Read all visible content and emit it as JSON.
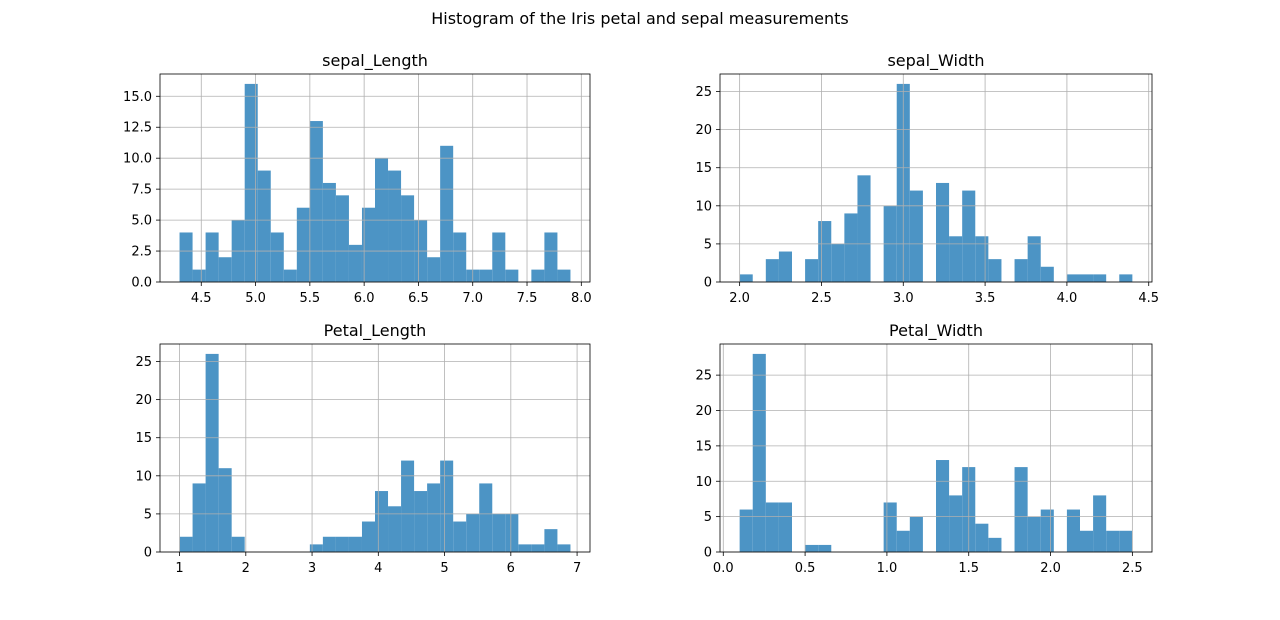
{
  "figure": {
    "title": "Histogram of the Iris petal and sepal measurements",
    "bar_color": "#4c94c5",
    "grid_color": "#b0b0b0"
  },
  "chart_data": [
    {
      "type": "bar",
      "title": "sepal_Length",
      "xlabel": "",
      "ylabel": "",
      "grid": true,
      "bin_range": [
        4.3,
        7.9
      ],
      "values": [
        4,
        1,
        4,
        2,
        5,
        16,
        9,
        4,
        1,
        6,
        13,
        8,
        7,
        3,
        6,
        10,
        9,
        7,
        5,
        2,
        11,
        4,
        1,
        1,
        4,
        1,
        0,
        1,
        4,
        1
      ],
      "xlim": [
        4.12,
        8.08
      ],
      "ylim": [
        0,
        16.8
      ],
      "xticks": [
        4.5,
        5.0,
        5.5,
        6.0,
        6.5,
        7.0,
        7.5,
        8.0
      ],
      "xtick_labels": [
        "4.5",
        "5.0",
        "5.5",
        "6.0",
        "6.5",
        "7.0",
        "7.5",
        "8.0"
      ],
      "yticks": [
        0,
        2.5,
        5,
        7.5,
        10,
        12.5,
        15
      ],
      "ytick_labels": [
        "0.0",
        "2.5",
        "5.0",
        "7.5",
        "10.0",
        "12.5",
        "15.0"
      ]
    },
    {
      "type": "bar",
      "title": "sepal_Width",
      "xlabel": "",
      "ylabel": "",
      "grid": true,
      "bin_range": [
        2.0,
        4.4
      ],
      "values": [
        1,
        0,
        3,
        4,
        0,
        3,
        8,
        5,
        9,
        14,
        0,
        10,
        26,
        12,
        0,
        13,
        6,
        12,
        6,
        3,
        0,
        3,
        6,
        2,
        0,
        1,
        1,
        1,
        0,
        1
      ],
      "xlim": [
        1.88,
        4.52
      ],
      "ylim": [
        0,
        27.3
      ],
      "xticks": [
        2.0,
        2.5,
        3.0,
        3.5,
        4.0,
        4.5
      ],
      "xtick_labels": [
        "2.0",
        "2.5",
        "3.0",
        "3.5",
        "4.0",
        "4.5"
      ],
      "yticks": [
        0,
        5,
        10,
        15,
        20,
        25
      ],
      "ytick_labels": [
        "0",
        "5",
        "10",
        "15",
        "20",
        "25"
      ]
    },
    {
      "type": "bar",
      "title": "Petal_Length",
      "xlabel": "",
      "ylabel": "",
      "grid": true,
      "bin_range": [
        1.0,
        6.9
      ],
      "values": [
        2,
        9,
        26,
        11,
        2,
        0,
        0,
        0,
        0,
        0,
        1,
        2,
        2,
        2,
        4,
        8,
        6,
        12,
        8,
        9,
        12,
        4,
        5,
        9,
        5,
        5,
        1,
        1,
        3,
        1
      ],
      "xlim": [
        0.705,
        7.195
      ],
      "ylim": [
        0,
        27.3
      ],
      "xticks": [
        1,
        2,
        3,
        4,
        5,
        6,
        7
      ],
      "xtick_labels": [
        "1",
        "2",
        "3",
        "4",
        "5",
        "6",
        "7"
      ],
      "yticks": [
        0,
        5,
        10,
        15,
        20,
        25
      ],
      "ytick_labels": [
        "0",
        "5",
        "10",
        "15",
        "20",
        "25"
      ]
    },
    {
      "type": "bar",
      "title": "Petal_Width",
      "xlabel": "",
      "ylabel": "",
      "grid": true,
      "bin_range": [
        0.1,
        2.5
      ],
      "values": [
        6,
        28,
        7,
        7,
        0,
        1,
        1,
        0,
        0,
        0,
        0,
        7,
        3,
        5,
        0,
        13,
        8,
        12,
        4,
        2,
        0,
        12,
        5,
        6,
        0,
        6,
        3,
        8,
        3,
        3
      ],
      "xlim": [
        -0.02,
        2.62
      ],
      "ylim": [
        0,
        29.4
      ],
      "xticks": [
        0.0,
        0.5,
        1.0,
        1.5,
        2.0,
        2.5
      ],
      "xtick_labels": [
        "0.0",
        "0.5",
        "1.0",
        "1.5",
        "2.0",
        "2.5"
      ],
      "yticks": [
        0,
        5,
        10,
        15,
        20,
        25
      ],
      "ytick_labels": [
        "0",
        "5",
        "10",
        "15",
        "20",
        "25"
      ]
    }
  ]
}
